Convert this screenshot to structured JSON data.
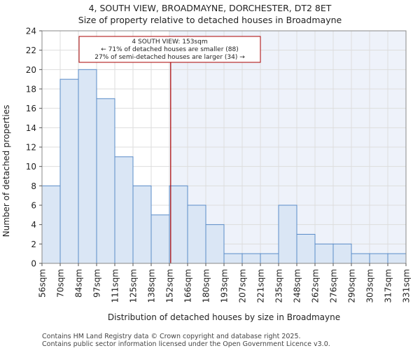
{
  "chart_data": {
    "type": "bar",
    "title_line1": "4, SOUTH VIEW, BROADMAYNE, DORCHESTER, DT2 8ET",
    "title_line2": "Size of property relative to detached houses in Broadmayne",
    "xlabel": "Distribution of detached houses by size in Broadmayne",
    "ylabel": "Number of detached properties",
    "ylim": [
      0,
      24
    ],
    "yticks": [
      0,
      2,
      4,
      6,
      8,
      10,
      12,
      14,
      16,
      18,
      20,
      22,
      24
    ],
    "bin_edges": [
      "56sqm",
      "70sqm",
      "84sqm",
      "97sqm",
      "111sqm",
      "125sqm",
      "138sqm",
      "152sqm",
      "166sqm",
      "180sqm",
      "193sqm",
      "207sqm",
      "221sqm",
      "235sqm",
      "248sqm",
      "262sqm",
      "276sqm",
      "290sqm",
      "303sqm",
      "317sqm",
      "331sqm"
    ],
    "values": [
      8,
      19,
      20,
      17,
      11,
      8,
      5,
      8,
      6,
      4,
      1,
      1,
      1,
      6,
      3,
      2,
      2,
      1,
      1,
      1
    ],
    "highlight_after_bin": 7,
    "property_line_bin_position": 7.07,
    "annotation": {
      "line1": "4 SOUTH VIEW: 153sqm",
      "line2": "← 71% of detached houses are smaller (88)",
      "line3": "27% of semi-detached houses are larger (34) →"
    },
    "colors": {
      "bar_fill": "#dae6f5",
      "bar_edge": "#5a8cc8",
      "highlight_bg": "#eef2fa",
      "property_line": "#aa0000",
      "annotation_border": "#aa0000"
    }
  },
  "footer": {
    "line1": "Contains HM Land Registry data © Crown copyright and database right 2025.",
    "line2": "Contains public sector information licensed under the Open Government Licence v3.0."
  }
}
